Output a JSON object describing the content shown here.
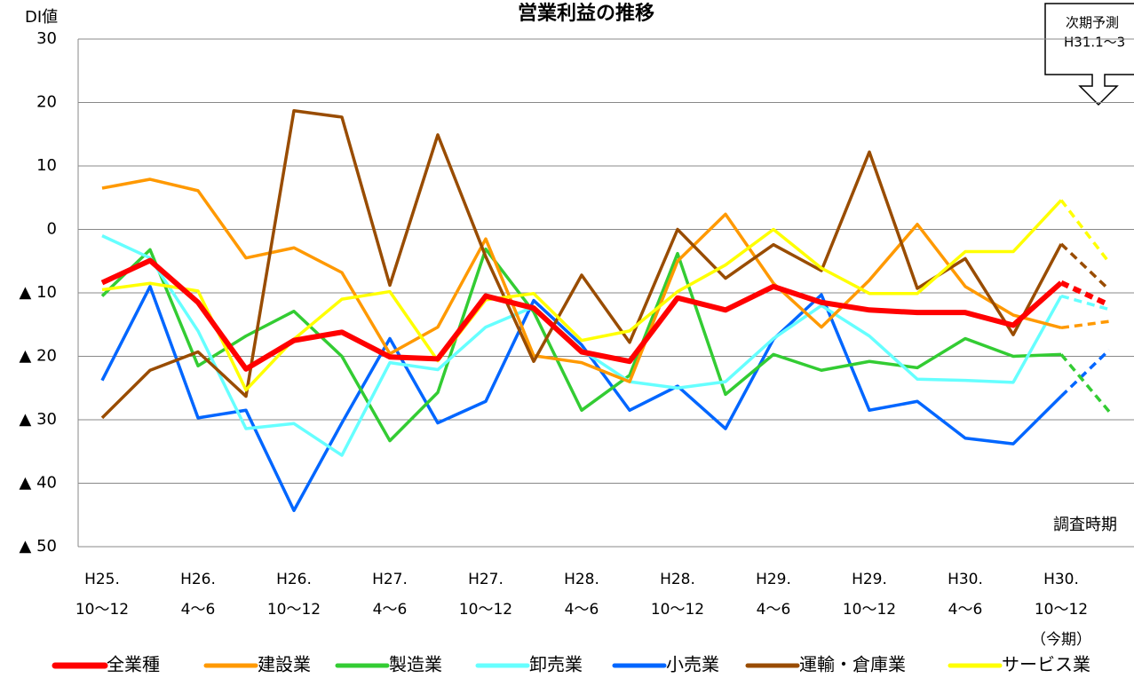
{
  "chart_data": {
    "type": "line",
    "title": "営業利益の推移",
    "y_label": "DI値",
    "x_label": "調査時期",
    "callout": [
      "次期予測",
      "H31.1〜3"
    ],
    "categories": [
      "H25.\n10〜12",
      null,
      "H26.\n4〜6",
      null,
      "H26.\n10〜12",
      null,
      "H27.\n4〜6",
      null,
      "H27.\n10〜12",
      null,
      "H28.\n4〜6",
      null,
      "H28.\n10〜12",
      null,
      "H29.\n4〜6",
      null,
      "H29.\n10〜12",
      null,
      "H30.\n4〜6",
      null,
      "H30.\n10〜12\n（今期）",
      null
    ],
    "dashed_last_segment": true,
    "ylim": [
      -50,
      30
    ],
    "yticks": [
      {
        "value": -50,
        "label": "▲ 50"
      },
      {
        "value": -40,
        "label": "▲ 40"
      },
      {
        "value": -30,
        "label": "▲ 30"
      },
      {
        "value": -20,
        "label": "▲ 20"
      },
      {
        "value": -10,
        "label": "▲ 10"
      },
      0,
      10,
      20,
      30
    ],
    "grid": true,
    "series": [
      {
        "name": "全業種",
        "color": "#ff0000",
        "values": [
          -8.4,
          -4.9,
          -11.5,
          -22,
          -17.5,
          -16.2,
          -20.1,
          -20.4,
          -10.5,
          -12.4,
          -19.3,
          -20.8,
          -10.8,
          -12.7,
          -9,
          -11.5,
          -12.7,
          -13.1,
          -13.1,
          -15.1,
          -8.4,
          -11.9
        ]
      },
      {
        "name": "建設業",
        "color": "#ff9900",
        "values": [
          6.5,
          7.9,
          6.1,
          -4.5,
          -2.9,
          -6.8,
          -19.6,
          -15.4,
          -1.5,
          -19.9,
          -21,
          -24,
          -5,
          2.4,
          -8.5,
          -15.4,
          -8,
          0.8,
          -9,
          -13.5,
          -15.5,
          -14.5
        ]
      },
      {
        "name": "製造業",
        "color": "#33cc33",
        "values": [
          -10.5,
          -3.2,
          -21.5,
          -16.8,
          -12.9,
          -20,
          -33.3,
          -25.7,
          -3.1,
          -13,
          -28.5,
          -23,
          -3.8,
          -26,
          -19.7,
          -22.2,
          -20.8,
          -21.8,
          -17.2,
          -20,
          -19.7,
          -28.7
        ]
      },
      {
        "name": "卸売業",
        "color": "#66ffff",
        "values": [
          -1,
          -4.5,
          -16,
          -31.4,
          -30.6,
          -35.6,
          -21,
          -22.1,
          -15.4,
          -12.2,
          -19,
          -24,
          -25,
          -24,
          -17.2,
          -12,
          -16.8,
          -23.6,
          -23.8,
          -24.1,
          -10.5,
          -12.6
        ]
      },
      {
        "name": "小売業",
        "color": "#0066ff",
        "values": [
          -23.8,
          -9,
          -29.7,
          -28.5,
          -44.3,
          -30.5,
          -17.2,
          -30.5,
          -27.1,
          -11.2,
          -18.2,
          -28.5,
          -24.7,
          -31.4,
          -17.3,
          -10.3,
          -28.5,
          -27.1,
          -32.9,
          -33.8,
          -26.3,
          -19
        ]
      },
      {
        "name": "運輸・倉庫業",
        "color": "#994c00",
        "values": [
          -29.7,
          -22.2,
          -19.3,
          -26.3,
          18.7,
          17.7,
          -8.8,
          14.9,
          -4.3,
          -20.8,
          -7.2,
          -17.8,
          0,
          -7.7,
          -2.4,
          -6.5,
          12.2,
          -9.3,
          -4.6,
          -16.6,
          -2.3,
          -9.5
        ]
      },
      {
        "name": "サービス業",
        "color": "#ffff00",
        "values": [
          -9.5,
          -8.5,
          -9.7,
          -25.3,
          -17.3,
          -11,
          -9.8,
          -20.7,
          -11.1,
          -10.1,
          -17.5,
          -16,
          -9.8,
          -5.6,
          0,
          -6.1,
          -10.1,
          -10.1,
          -3.5,
          -3.5,
          4.6,
          -5.2
        ]
      }
    ]
  }
}
